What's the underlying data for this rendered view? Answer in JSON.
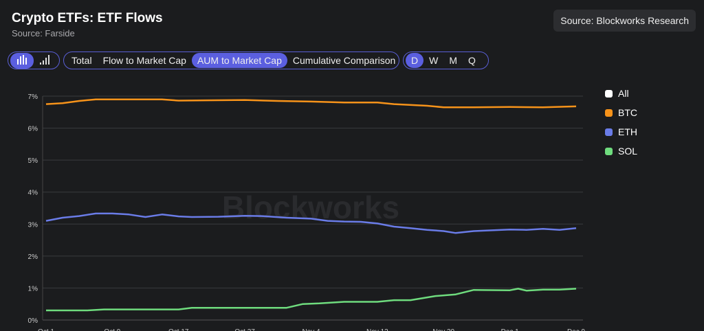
{
  "header": {
    "title": "Crypto ETFs: ETF Flows",
    "subtitle": "Source: Farside",
    "source_button": "Source: Blockworks Research"
  },
  "chart_types": [
    {
      "icon": "bar-chart-icon",
      "active": true
    },
    {
      "icon": "signal-bars-icon",
      "active": false
    }
  ],
  "views": [
    {
      "label": "Total",
      "active": false
    },
    {
      "label": "Flow to Market Cap",
      "active": false
    },
    {
      "label": "AUM to Market Cap",
      "active": true
    },
    {
      "label": "Cumulative Comparison",
      "active": false
    }
  ],
  "periods": [
    {
      "label": "D",
      "active": true
    },
    {
      "label": "W",
      "active": false
    },
    {
      "label": "M",
      "active": false
    },
    {
      "label": "Q",
      "active": false
    }
  ],
  "watermark": "Blockworks",
  "chart_data": {
    "type": "line",
    "title": "",
    "xlabel": "",
    "ylabel": "",
    "ylim": [
      0,
      7
    ],
    "y_ticks": [
      "0%",
      "1%",
      "2%",
      "3%",
      "4%",
      "5%",
      "6%",
      "7%"
    ],
    "x_ticks": [
      "Oct 1",
      "Oct 9",
      "Oct 17",
      "Oct 27",
      "Nov 4",
      "Nov 12",
      "Nov 20",
      "Dec 1",
      "Dec 9"
    ],
    "x_tick_dates": [
      "2024-10-01",
      "2024-10-09",
      "2024-10-17",
      "2024-10-27",
      "2024-11-04",
      "2024-11-12",
      "2024-11-20",
      "2024-12-01",
      "2024-12-09"
    ],
    "grid": true,
    "legend_position": "right",
    "legend": [
      {
        "name": "All",
        "color": "#ffffff"
      },
      {
        "name": "BTC",
        "color": "#f7931a"
      },
      {
        "name": "ETH",
        "color": "#6a7ce8"
      },
      {
        "name": "SOL",
        "color": "#6fdc7e"
      }
    ],
    "series": [
      {
        "name": "BTC",
        "color": "#f7931a",
        "points": [
          [
            "2024-10-01",
            6.75
          ],
          [
            "2024-10-03",
            6.78
          ],
          [
            "2024-10-05",
            6.85
          ],
          [
            "2024-10-07",
            6.9
          ],
          [
            "2024-10-09",
            6.9
          ],
          [
            "2024-10-15",
            6.9
          ],
          [
            "2024-10-17",
            6.86
          ],
          [
            "2024-10-21",
            6.87
          ],
          [
            "2024-10-27",
            6.88
          ],
          [
            "2024-10-31",
            6.85
          ],
          [
            "2024-11-04",
            6.83
          ],
          [
            "2024-11-08",
            6.8
          ],
          [
            "2024-11-12",
            6.8
          ],
          [
            "2024-11-14",
            6.75
          ],
          [
            "2024-11-18",
            6.7
          ],
          [
            "2024-11-20",
            6.65
          ],
          [
            "2024-11-25",
            6.65
          ],
          [
            "2024-12-01",
            6.66
          ],
          [
            "2024-12-05",
            6.65
          ],
          [
            "2024-12-09",
            6.68
          ]
        ]
      },
      {
        "name": "ETH",
        "color": "#6a7ce8",
        "points": [
          [
            "2024-10-01",
            3.1
          ],
          [
            "2024-10-03",
            3.2
          ],
          [
            "2024-10-05",
            3.25
          ],
          [
            "2024-10-07",
            3.33
          ],
          [
            "2024-10-09",
            3.33
          ],
          [
            "2024-10-11",
            3.3
          ],
          [
            "2024-10-13",
            3.22
          ],
          [
            "2024-10-15",
            3.3
          ],
          [
            "2024-10-17",
            3.24
          ],
          [
            "2024-10-19",
            3.22
          ],
          [
            "2024-10-23",
            3.23
          ],
          [
            "2024-10-27",
            3.26
          ],
          [
            "2024-10-29",
            3.25
          ],
          [
            "2024-11-01",
            3.2
          ],
          [
            "2024-11-04",
            3.17
          ],
          [
            "2024-11-06",
            3.1
          ],
          [
            "2024-11-08",
            3.08
          ],
          [
            "2024-11-10",
            3.07
          ],
          [
            "2024-11-12",
            3.02
          ],
          [
            "2024-11-14",
            2.92
          ],
          [
            "2024-11-16",
            2.87
          ],
          [
            "2024-11-18",
            2.82
          ],
          [
            "2024-11-20",
            2.78
          ],
          [
            "2024-11-22",
            2.72
          ],
          [
            "2024-11-25",
            2.78
          ],
          [
            "2024-12-01",
            2.83
          ],
          [
            "2024-12-03",
            2.82
          ],
          [
            "2024-12-05",
            2.85
          ],
          [
            "2024-12-07",
            2.82
          ],
          [
            "2024-12-09",
            2.87
          ]
        ]
      },
      {
        "name": "SOL",
        "color": "#6fdc7e",
        "points": [
          [
            "2024-10-01",
            0.3
          ],
          [
            "2024-10-06",
            0.3
          ],
          [
            "2024-10-08",
            0.33
          ],
          [
            "2024-10-17",
            0.33
          ],
          [
            "2024-10-19",
            0.38
          ],
          [
            "2024-11-01",
            0.38
          ],
          [
            "2024-11-03",
            0.5
          ],
          [
            "2024-11-05",
            0.52
          ],
          [
            "2024-11-08",
            0.57
          ],
          [
            "2024-11-12",
            0.57
          ],
          [
            "2024-11-14",
            0.62
          ],
          [
            "2024-11-16",
            0.62
          ],
          [
            "2024-11-19",
            0.75
          ],
          [
            "2024-11-22",
            0.8
          ],
          [
            "2024-11-25",
            0.94
          ],
          [
            "2024-12-01",
            0.93
          ],
          [
            "2024-12-02",
            0.98
          ],
          [
            "2024-12-03",
            0.92
          ],
          [
            "2024-12-05",
            0.95
          ],
          [
            "2024-12-07",
            0.95
          ],
          [
            "2024-12-09",
            0.98
          ]
        ]
      }
    ]
  }
}
